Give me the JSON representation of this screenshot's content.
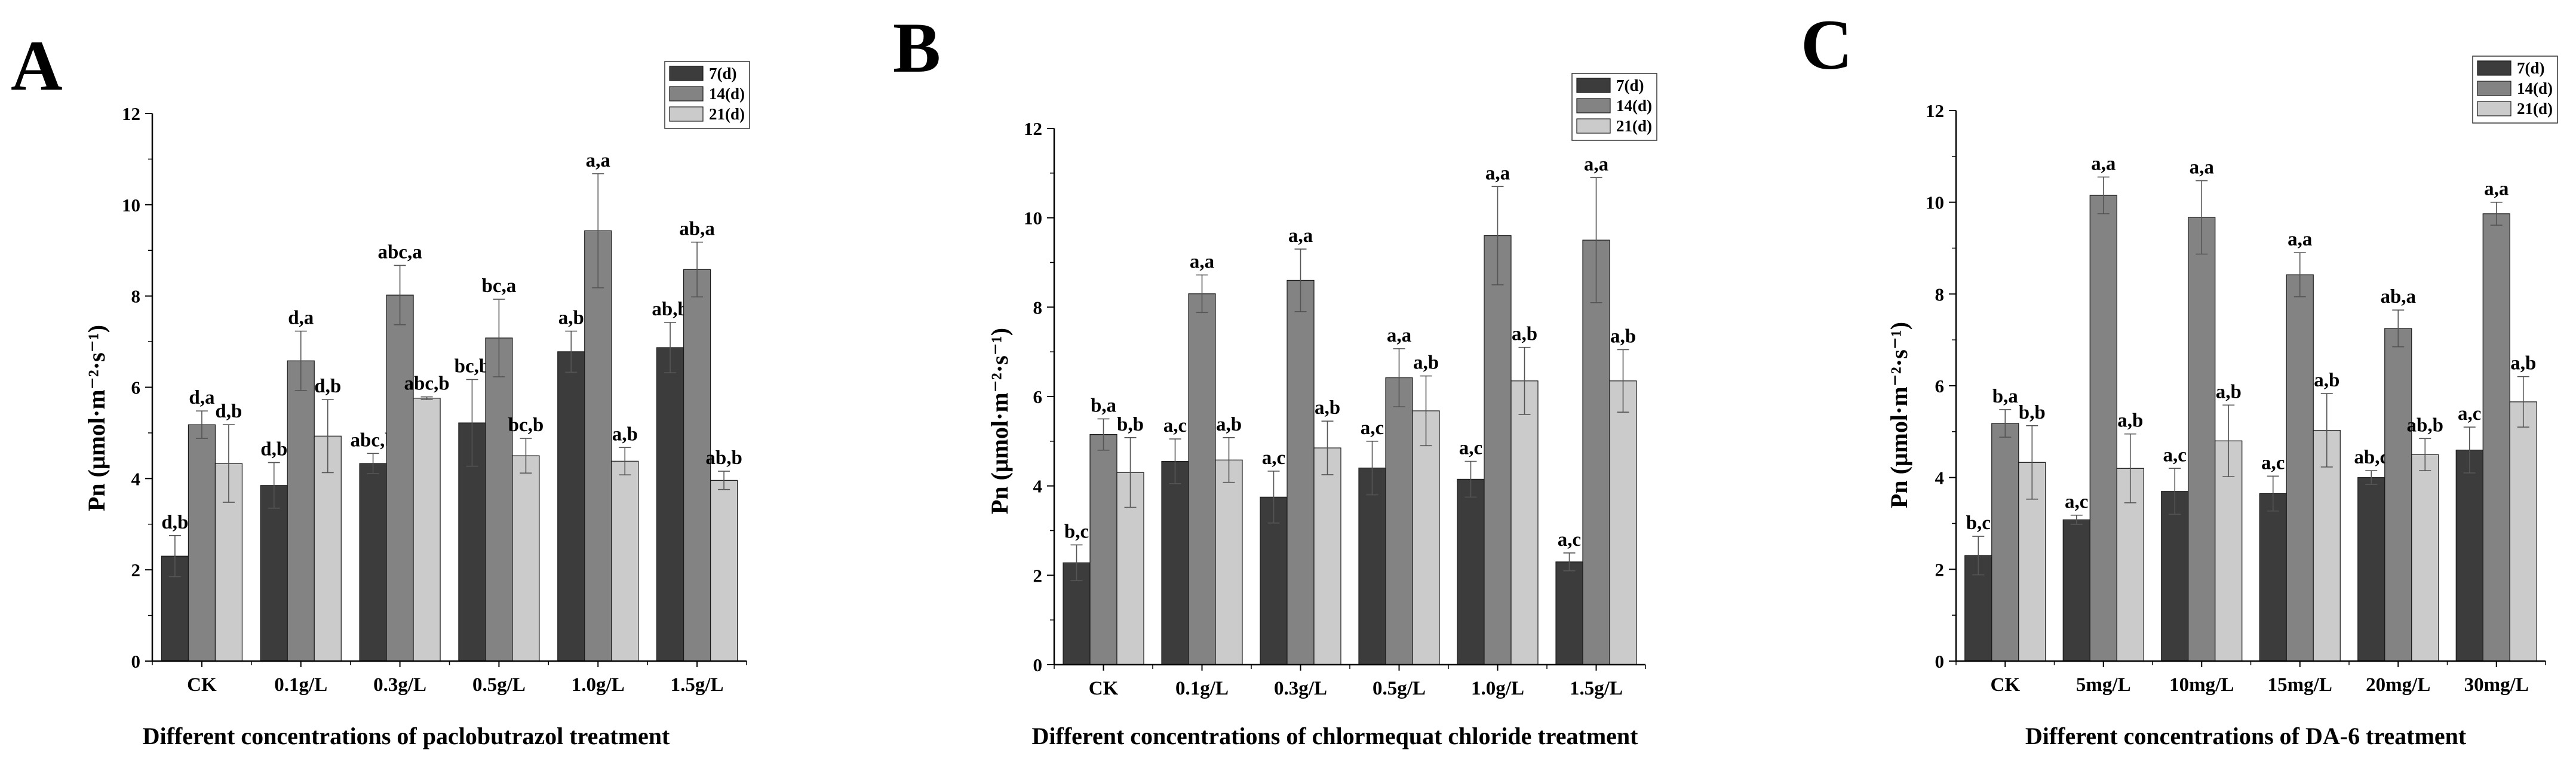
{
  "colors": {
    "7(d)": "#3c3c3c",
    "14(d)": "#838383",
    "21(d)": "#cbcbcb",
    "axis": "#000000"
  },
  "chart_data": [
    {
      "type": "bar",
      "panel": "A",
      "ylabel": "Pn (μmol·m⁻²·s⁻¹)",
      "xlabel": "Different concentrations of paclobutrazol treatment",
      "ylim": [
        0,
        12
      ],
      "yticks": [
        "0",
        "2",
        "4",
        "6",
        "8",
        "10",
        "12"
      ],
      "categories": [
        "CK",
        "0.1g/L",
        "0.3g/L",
        "0.5g/L",
        "1.0g/L",
        "1.5g/L"
      ],
      "legend": [
        "7(d)",
        "14(d)",
        "21(d)"
      ],
      "series": [
        {
          "name": "7(d)",
          "values": [
            2.3,
            3.85,
            4.33,
            5.22,
            6.78,
            6.87
          ],
          "errors": [
            0.45,
            0.5,
            0.22,
            0.95,
            0.45,
            0.55
          ],
          "labels": [
            "d,b",
            "d,b",
            "abc,b",
            "bc,b",
            "a,b",
            "ab,b"
          ]
        },
        {
          "name": "14(d)",
          "values": [
            5.18,
            6.58,
            8.02,
            7.08,
            9.43,
            8.58
          ],
          "errors": [
            0.3,
            0.65,
            0.65,
            0.85,
            1.25,
            0.6
          ],
          "labels": [
            "d,a",
            "d,a",
            "abc,a",
            "bc,a",
            "a,a",
            "ab,a"
          ]
        },
        {
          "name": "21(d)",
          "values": [
            4.33,
            4.93,
            5.76,
            4.5,
            4.38,
            3.96
          ],
          "errors": [
            0.85,
            0.8,
            0.03,
            0.38,
            0.3,
            0.2
          ],
          "labels": [
            "d,b",
            "d,b",
            "abc,b",
            "bc,b",
            "a,b",
            "ab,b"
          ]
        }
      ]
    },
    {
      "type": "bar",
      "panel": "B",
      "ylabel": "Pn (μmol·m⁻²·s⁻¹)",
      "xlabel": "Different concentrations of chlormequat chloride treatment",
      "ylim": [
        0,
        12
      ],
      "yticks": [
        "0",
        "2",
        "4",
        "6",
        "8",
        "10",
        "12"
      ],
      "categories": [
        "CK",
        "0.1g/L",
        "0.3g/L",
        "0.5g/L",
        "1.0g/L",
        "1.5g/L"
      ],
      "legend": [
        "7(d)",
        "14(d)",
        "21(d)"
      ],
      "series": [
        {
          "name": "7(d)",
          "values": [
            2.28,
            4.55,
            3.75,
            4.4,
            4.15,
            2.3
          ],
          "errors": [
            0.4,
            0.5,
            0.58,
            0.6,
            0.4,
            0.2
          ],
          "labels": [
            "b,c",
            "a,c",
            "a,c",
            "a,c",
            "a,c",
            "a,c"
          ]
        },
        {
          "name": "14(d)",
          "values": [
            5.15,
            8.3,
            8.6,
            6.42,
            9.6,
            9.5
          ],
          "errors": [
            0.35,
            0.42,
            0.7,
            0.65,
            1.1,
            1.4
          ],
          "labels": [
            "b,a",
            "a,a",
            "a,a",
            "a,a",
            "a,a",
            "a,a"
          ]
        },
        {
          "name": "21(d)",
          "values": [
            4.3,
            4.58,
            4.85,
            5.68,
            6.35,
            6.35
          ],
          "errors": [
            0.78,
            0.5,
            0.6,
            0.78,
            0.75,
            0.7
          ],
          "labels": [
            "b,b",
            "a,b",
            "a,b",
            "a,b",
            "a,b",
            "a,b"
          ]
        }
      ]
    },
    {
      "type": "bar",
      "panel": "C",
      "ylabel": "Pn (μmol·m⁻²·s⁻¹)",
      "xlabel": "Different concentrations of DA-6 treatment",
      "ylim": [
        0,
        12
      ],
      "yticks": [
        "0",
        "2",
        "4",
        "6",
        "8",
        "10",
        "12"
      ],
      "categories": [
        "CK",
        "5mg/L",
        "10mg/L",
        "15mg/L",
        "20mg/L",
        "30mg/L"
      ],
      "legend": [
        "7(d)",
        "14(d)",
        "21(d)"
      ],
      "series": [
        {
          "name": "7(d)",
          "values": [
            2.3,
            3.08,
            3.7,
            3.65,
            4.0,
            4.6
          ],
          "errors": [
            0.42,
            0.1,
            0.5,
            0.38,
            0.15,
            0.5
          ],
          "labels": [
            "b,c",
            "a,c",
            "a,c",
            "a,c",
            "ab,c",
            "a,c"
          ]
        },
        {
          "name": "14(d)",
          "values": [
            5.18,
            10.15,
            9.67,
            8.42,
            7.25,
            9.75
          ],
          "errors": [
            0.3,
            0.4,
            0.8,
            0.48,
            0.4,
            0.25
          ],
          "labels": [
            "b,a",
            "a,a",
            "a,a",
            "a,a",
            "ab,a",
            "a,a"
          ]
        },
        {
          "name": "21(d)",
          "values": [
            4.33,
            4.2,
            4.8,
            5.03,
            4.5,
            5.65
          ],
          "errors": [
            0.8,
            0.75,
            0.78,
            0.8,
            0.35,
            0.55
          ],
          "labels": [
            "b,b",
            "a,b",
            "a,b",
            "a,b",
            "ab,b",
            "a,b"
          ]
        }
      ]
    }
  ]
}
